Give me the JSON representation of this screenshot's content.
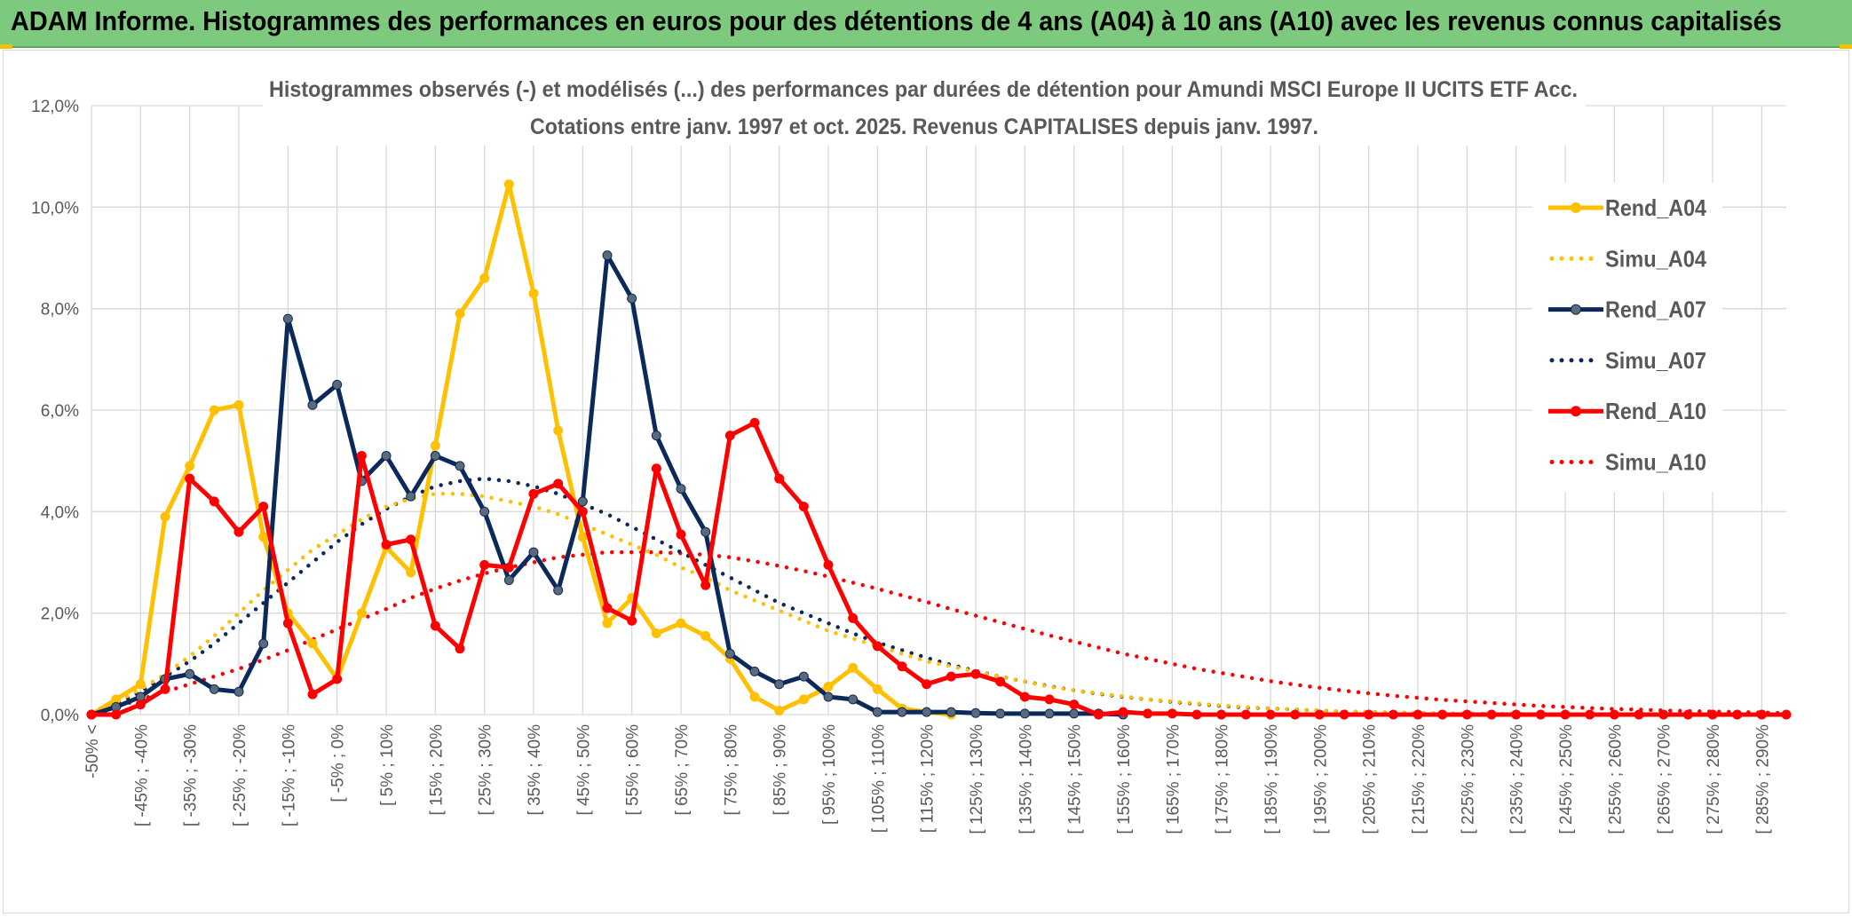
{
  "banner": {
    "title": "ADAM Informe. Histogrammes des performances en euros pour des détentions de 4 ans (A04) à 10 ans (A10) avec les revenus connus capitalisés"
  },
  "colors": {
    "banner_bg": "#7dc97d",
    "rend_a04": "#ffc000",
    "rend_a07": "#0b2a5b",
    "rend_a07_marker": "#5a6a7a",
    "rend_a10": "#ff0000",
    "grid": "#d9d9d9",
    "axis_text": "#595959"
  },
  "chart_data": {
    "type": "line",
    "title": "Histogrammes observés (-) et modélisés (...) des performances par durées de détention pour Amundi MSCI Europe II UCITS ETF Acc.",
    "subtitle": "Cotations entre janv. 1997 et oct. 2025. Revenus CAPITALISES depuis janv. 1997.",
    "ylim": [
      0,
      12
    ],
    "y_ticks": [
      "0,0%",
      "2,0%",
      "4,0%",
      "6,0%",
      "8,0%",
      "10,0%",
      "12,0%"
    ],
    "x_labels": [
      "-50% <",
      "[ -45% ; -40%",
      "[ -35% ; -30%",
      "[ -25% ; -20%",
      "[ -15% ; -10%",
      "[ -5% ; 0%",
      "[ 5% ; 10%",
      "[ 15% ; 20%",
      "[ 25% ; 30%",
      "[ 35% ; 40%",
      "[ 45% ; 50%",
      "[ 55% ; 60%",
      "[ 65% ; 70%",
      "[ 75% ; 80%",
      "[ 85% ; 90%",
      "[ 95% ; 100%",
      "[ 105% ; 110%",
      "[ 115% ; 120%",
      "[ 125% ; 130%",
      "[ 135% ; 140%",
      "[ 145% ; 150%",
      "[ 155% ; 160%",
      "[ 165% ; 170%",
      "[ 175% ; 180%",
      "[ 185% ; 190%",
      "[ 195% ; 200%",
      "[ 205% ; 210%",
      "[ 215% ; 220%",
      "[ 225% ; 230%",
      "[ 235% ; 240%",
      "[ 245% ; 250%",
      "[ 255% ; 260%",
      "[ 265% ; 270%",
      "[ 275% ; 280%",
      "[ 285% ; 290%"
    ],
    "legend_position": "right",
    "series": [
      {
        "name": "Rend_A04",
        "style": "solid",
        "color": "#ffc000",
        "values": [
          0,
          0.3,
          0.6,
          3.9,
          4.9,
          6.0,
          6.1,
          3.5,
          2.0,
          1.4,
          0.7,
          2.0,
          3.3,
          2.8,
          5.3,
          7.9,
          8.6,
          10.45,
          8.3,
          5.6,
          3.5,
          1.8,
          2.3,
          1.6,
          1.8,
          1.55,
          1.1,
          0.35,
          0.08,
          0.3,
          0.55,
          0.92,
          0.5,
          0.12,
          0.05,
          0.0
        ]
      },
      {
        "name": "Simu_A04",
        "style": "dotted",
        "color": "#ffc000",
        "values": [
          0.05,
          0.25,
          0.5,
          0.8,
          1.15,
          1.55,
          2.0,
          2.45,
          2.85,
          3.25,
          3.55,
          3.85,
          4.1,
          4.25,
          4.35,
          4.35,
          4.3,
          4.2,
          4.1,
          3.95,
          3.75,
          3.55,
          3.35,
          3.15,
          2.9,
          2.7,
          2.45,
          2.25,
          2.05,
          1.85,
          1.65,
          1.5,
          1.35,
          1.2,
          1.05,
          0.95,
          0.85,
          0.75,
          0.65,
          0.55,
          0.48,
          0.42,
          0.36,
          0.3,
          0.26,
          0.22,
          0.18,
          0.15,
          0.12,
          0.1,
          0.08,
          0.06,
          0.05,
          0.04,
          0.03,
          0.02,
          0.02,
          0.01,
          0.01,
          0.01,
          0.0,
          0.0,
          0.0,
          0.0,
          0.0,
          0.0,
          0.0,
          0.0,
          0.0,
          0.0
        ]
      },
      {
        "name": "Rend_A07",
        "style": "solid",
        "color": "#0b2a5b",
        "values": [
          0,
          0.15,
          0.35,
          0.7,
          0.8,
          0.5,
          0.45,
          1.4,
          7.8,
          6.1,
          6.5,
          4.6,
          5.1,
          4.3,
          5.1,
          4.9,
          4.0,
          2.65,
          3.2,
          2.45,
          4.2,
          9.05,
          8.2,
          5.5,
          4.45,
          3.6,
          1.2,
          0.85,
          0.6,
          0.75,
          0.35,
          0.3,
          0.05,
          0.05,
          0.05,
          0.05,
          0.03,
          0.02,
          0.02,
          0.02,
          0.02,
          0.02,
          0.0
        ]
      },
      {
        "name": "Simu_A07",
        "style": "dotted",
        "color": "#0b2a5b",
        "values": [
          0.05,
          0.2,
          0.45,
          0.75,
          1.05,
          1.4,
          1.8,
          2.2,
          2.6,
          3.0,
          3.4,
          3.75,
          4.05,
          4.3,
          4.5,
          4.6,
          4.65,
          4.6,
          4.5,
          4.35,
          4.15,
          3.95,
          3.7,
          3.45,
          3.2,
          2.95,
          2.7,
          2.45,
          2.2,
          2.0,
          1.8,
          1.6,
          1.42,
          1.27,
          1.12,
          0.98,
          0.86,
          0.75,
          0.65,
          0.56,
          0.48,
          0.41,
          0.35,
          0.3,
          0.25,
          0.21,
          0.17,
          0.14,
          0.12,
          0.1,
          0.08,
          0.06,
          0.05,
          0.04,
          0.03,
          0.02,
          0.02,
          0.01,
          0.01,
          0.0,
          0.0,
          0.0,
          0.0,
          0.0,
          0.0,
          0.0,
          0.0,
          0.0,
          0.0,
          0.0
        ]
      },
      {
        "name": "Rend_A10",
        "style": "solid",
        "color": "#ff0000",
        "values": [
          0,
          0.0,
          0.2,
          0.5,
          4.65,
          4.2,
          3.6,
          4.1,
          1.8,
          0.4,
          0.7,
          5.1,
          3.35,
          3.45,
          1.75,
          1.3,
          2.95,
          2.9,
          4.35,
          4.55,
          4.0,
          2.1,
          1.85,
          4.85,
          3.55,
          2.55,
          5.5,
          5.75,
          4.65,
          4.1,
          2.95,
          1.9,
          1.35,
          0.95,
          0.6,
          0.75,
          0.8,
          0.65,
          0.35,
          0.3,
          0.2,
          0.0,
          0.05,
          0.02,
          0.02,
          0.0,
          0.0,
          0.0,
          0.0,
          0.0,
          0.0,
          0.0,
          0.0,
          0.0,
          0.0,
          0.0,
          0.0,
          0.0,
          0.0,
          0.0,
          0.0,
          0.0,
          0.0,
          0.0,
          0.0,
          0.0,
          0.0,
          0.0,
          0.0,
          0.0
        ]
      },
      {
        "name": "Simu_A10",
        "style": "dotted",
        "color": "#ff0000",
        "values": [
          0.05,
          0.15,
          0.3,
          0.45,
          0.6,
          0.75,
          0.9,
          1.08,
          1.27,
          1.48,
          1.68,
          1.88,
          2.08,
          2.3,
          2.48,
          2.64,
          2.78,
          2.9,
          3.0,
          3.1,
          3.15,
          3.2,
          3.2,
          3.2,
          3.18,
          3.15,
          3.1,
          3.02,
          2.93,
          2.83,
          2.72,
          2.6,
          2.48,
          2.35,
          2.22,
          2.08,
          1.95,
          1.82,
          1.69,
          1.56,
          1.44,
          1.32,
          1.2,
          1.1,
          1.0,
          0.9,
          0.82,
          0.74,
          0.66,
          0.59,
          0.53,
          0.47,
          0.42,
          0.37,
          0.33,
          0.29,
          0.26,
          0.23,
          0.2,
          0.17,
          0.15,
          0.13,
          0.11,
          0.1,
          0.08,
          0.07,
          0.06,
          0.05,
          0.04,
          0.03
        ]
      }
    ]
  }
}
